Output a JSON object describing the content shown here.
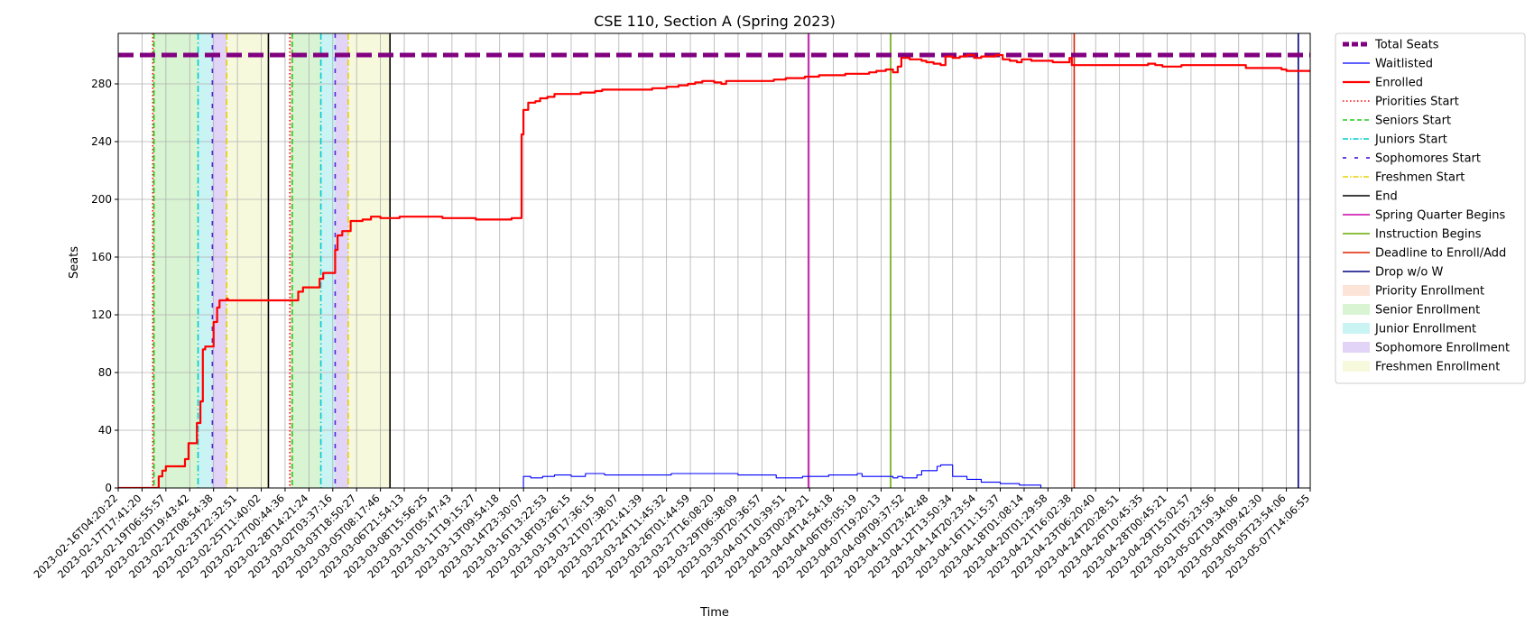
{
  "chart_data": {
    "type": "line",
    "title": "CSE 110, Section A (Spring 2023)",
    "xlabel": "Time",
    "ylabel": "Seats",
    "ylim": [
      0,
      315
    ],
    "yticks": [
      0,
      40,
      80,
      120,
      160,
      200,
      240,
      280
    ],
    "grid": true,
    "legend_placement": "outside-right",
    "x_tick_labels": [
      "2023-02-16T04:20:22",
      "2023-02-17T17:41:20",
      "2023-02-19T06:55:57",
      "2023-02-20T19:43:42",
      "2023-02-22T08:54:38",
      "2023-02-23T22:32:51",
      "2023-02-25T11:40:02",
      "2023-02-27T00:44:36",
      "2023-02-28T14:21:24",
      "2023-03-02T03:37:16",
      "2023-03-03T18:50:27",
      "2023-03-05T08:17:46",
      "2023-03-06T21:54:13",
      "2023-03-08T15:56:25",
      "2023-03-10T05:47:43",
      "2023-03-11T19:15:27",
      "2023-03-13T09:54:18",
      "2023-03-14T23:30:07",
      "2023-03-16T13:22:53",
      "2023-03-18T03:26:15",
      "2023-03-19T17:36:15",
      "2023-03-21T07:38:07",
      "2023-03-22T21:41:39",
      "2023-03-24T11:45:32",
      "2023-03-26T01:44:59",
      "2023-03-27T16:08:20",
      "2023-03-29T06:38:09",
      "2023-03-30T20:36:57",
      "2023-04-01T10:39:51",
      "2023-04-03T00:29:21",
      "2023-04-04T14:54:18",
      "2023-04-06T05:05:19",
      "2023-04-07T19:20:13",
      "2023-04-09T09:37:52",
      "2023-04-10T23:42:48",
      "2023-04-12T13:50:34",
      "2023-04-14T20:23:54",
      "2023-04-16T11:15:37",
      "2023-04-18T01:08:14",
      "2023-04-20T01:29:58",
      "2023-04-21T16:02:38",
      "2023-04-23T06:20:40",
      "2023-04-24T20:28:51",
      "2023-04-26T10:45:35",
      "2023-04-28T00:45:21",
      "2023-04-29T15:02:57",
      "2023-05-01T05:23:56",
      "2023-05-02T19:34:06",
      "2023-05-04T09:42:30",
      "2023-05-05T23:54:06",
      "2023-05-07T14:06:55"
    ],
    "x_range_index": [
      0,
      50
    ],
    "total_seats": 300,
    "series": [
      {
        "name": "Enrolled",
        "color": "#ff0000",
        "points": [
          [
            0,
            0
          ],
          [
            1.45,
            0
          ],
          [
            1.6,
            0
          ],
          [
            1.7,
            8
          ],
          [
            1.85,
            12
          ],
          [
            2.0,
            15
          ],
          [
            2.6,
            15
          ],
          [
            2.8,
            20
          ],
          [
            2.95,
            31
          ],
          [
            3.15,
            31
          ],
          [
            3.3,
            45
          ],
          [
            3.45,
            60
          ],
          [
            3.55,
            96
          ],
          [
            3.65,
            98
          ],
          [
            3.85,
            98
          ],
          [
            4.0,
            115
          ],
          [
            4.15,
            125
          ],
          [
            4.25,
            130
          ],
          [
            4.55,
            131
          ],
          [
            4.6,
            130
          ],
          [
            7.45,
            130
          ],
          [
            7.55,
            136
          ],
          [
            7.75,
            139
          ],
          [
            8.3,
            139
          ],
          [
            8.45,
            145
          ],
          [
            8.6,
            149
          ],
          [
            8.95,
            149
          ],
          [
            9.1,
            165
          ],
          [
            9.2,
            175
          ],
          [
            9.4,
            178
          ],
          [
            9.6,
            178
          ],
          [
            9.75,
            185
          ],
          [
            10.25,
            186
          ],
          [
            10.6,
            188
          ],
          [
            11.0,
            187
          ],
          [
            11.6,
            187
          ],
          [
            11.8,
            188
          ],
          [
            13.5,
            188
          ],
          [
            13.6,
            187
          ],
          [
            14.9,
            187
          ],
          [
            15.0,
            186
          ],
          [
            16.4,
            186
          ],
          [
            16.5,
            187
          ],
          [
            16.85,
            187
          ],
          [
            16.92,
            245
          ],
          [
            17.0,
            262
          ],
          [
            17.2,
            267
          ],
          [
            17.5,
            268
          ],
          [
            17.7,
            270
          ],
          [
            18.0,
            271
          ],
          [
            18.3,
            273
          ],
          [
            19.0,
            273
          ],
          [
            19.4,
            274
          ],
          [
            20.0,
            275
          ],
          [
            20.3,
            276
          ],
          [
            22.0,
            276
          ],
          [
            22.4,
            277
          ],
          [
            23.0,
            278
          ],
          [
            23.5,
            279
          ],
          [
            23.9,
            280
          ],
          [
            24.2,
            281
          ],
          [
            24.5,
            282
          ],
          [
            25.0,
            281
          ],
          [
            25.3,
            280
          ],
          [
            25.5,
            282
          ],
          [
            27.0,
            282
          ],
          [
            27.5,
            283
          ],
          [
            28.0,
            284
          ],
          [
            28.6,
            284
          ],
          [
            28.8,
            285
          ],
          [
            29.4,
            286
          ],
          [
            30.5,
            287
          ],
          [
            31.5,
            288
          ],
          [
            31.8,
            289
          ],
          [
            32.2,
            290
          ],
          [
            32.5,
            288
          ],
          [
            32.7,
            292
          ],
          [
            32.85,
            298
          ],
          [
            33.2,
            297
          ],
          [
            33.7,
            296
          ],
          [
            33.9,
            295
          ],
          [
            34.2,
            294
          ],
          [
            34.5,
            293
          ],
          [
            34.7,
            299
          ],
          [
            35.0,
            298
          ],
          [
            35.3,
            299
          ],
          [
            35.6,
            300
          ],
          [
            35.9,
            298
          ],
          [
            36.2,
            299
          ],
          [
            36.8,
            300
          ],
          [
            37.1,
            297
          ],
          [
            37.4,
            296
          ],
          [
            37.7,
            295
          ],
          [
            37.9,
            297
          ],
          [
            38.3,
            296
          ],
          [
            38.9,
            296
          ],
          [
            39.2,
            295
          ],
          [
            39.8,
            295
          ],
          [
            39.9,
            298
          ],
          [
            40.0,
            293
          ],
          [
            43.0,
            293
          ],
          [
            43.2,
            294
          ],
          [
            43.5,
            293
          ],
          [
            43.8,
            292
          ],
          [
            44.5,
            292
          ],
          [
            44.6,
            293
          ],
          [
            47.0,
            293
          ],
          [
            47.3,
            291
          ],
          [
            48.0,
            291
          ],
          [
            48.8,
            290
          ],
          [
            49.0,
            289
          ],
          [
            50,
            289
          ]
        ]
      },
      {
        "name": "Waitlisted",
        "color": "#0000ff",
        "points": [
          [
            0,
            0
          ],
          [
            16.9,
            0
          ],
          [
            17.0,
            8
          ],
          [
            17.2,
            8
          ],
          [
            17.3,
            7
          ],
          [
            17.6,
            7
          ],
          [
            17.8,
            8
          ],
          [
            18.1,
            8
          ],
          [
            18.3,
            9
          ],
          [
            18.9,
            9
          ],
          [
            19.0,
            8
          ],
          [
            19.5,
            8
          ],
          [
            19.6,
            10
          ],
          [
            20.2,
            10
          ],
          [
            20.4,
            9
          ],
          [
            23.0,
            9
          ],
          [
            23.2,
            10
          ],
          [
            25.8,
            10
          ],
          [
            26.0,
            9
          ],
          [
            27.4,
            9
          ],
          [
            27.6,
            7
          ],
          [
            28.5,
            7
          ],
          [
            28.7,
            8
          ],
          [
            29.6,
            8
          ],
          [
            29.8,
            9
          ],
          [
            30.9,
            9
          ],
          [
            31.0,
            10
          ],
          [
            31.2,
            8
          ],
          [
            32.4,
            8
          ],
          [
            32.5,
            7
          ],
          [
            32.7,
            8
          ],
          [
            32.9,
            7
          ],
          [
            33.3,
            7
          ],
          [
            33.5,
            9
          ],
          [
            33.7,
            12
          ],
          [
            34.2,
            12
          ],
          [
            34.35,
            15
          ],
          [
            34.5,
            16
          ],
          [
            34.9,
            16
          ],
          [
            35.0,
            8
          ],
          [
            35.5,
            8
          ],
          [
            35.6,
            6
          ],
          [
            36.0,
            6
          ],
          [
            36.2,
            4
          ],
          [
            36.8,
            4
          ],
          [
            37.0,
            3
          ],
          [
            37.6,
            3
          ],
          [
            37.8,
            2
          ],
          [
            38.6,
            2
          ],
          [
            38.7,
            0
          ],
          [
            50,
            0
          ]
        ]
      }
    ],
    "enrollment_periods": [
      {
        "name": "Priority Enrollment",
        "color": "#f4a582",
        "start": 1.45,
        "end": 1.5
      },
      {
        "name": "Senior Enrollment",
        "color": "#7fdc6a",
        "start": 1.5,
        "end": 3.35
      },
      {
        "name": "Junior Enrollment",
        "color": "#4fd6dc",
        "start": 3.35,
        "end": 3.95
      },
      {
        "name": "Sophomore Enrollment",
        "color": "#9b6fe0",
        "start": 3.95,
        "end": 4.55
      },
      {
        "name": "Freshmen Enrollment",
        "color": "#e6ec8a",
        "start": 4.55,
        "end": 6.3
      },
      {
        "name": "Priority Enrollment",
        "color": "#f4a582",
        "start": 7.2,
        "end": 7.3
      },
      {
        "name": "Senior Enrollment",
        "color": "#7fdc6a",
        "start": 7.3,
        "end": 8.5
      },
      {
        "name": "Junior Enrollment",
        "color": "#4fd6dc",
        "start": 8.5,
        "end": 9.1
      },
      {
        "name": "Sophomore Enrollment",
        "color": "#9b6fe0",
        "start": 9.1,
        "end": 9.65
      },
      {
        "name": "Freshmen Enrollment",
        "color": "#e6ec8a",
        "start": 9.65,
        "end": 11.4
      }
    ],
    "markers": [
      {
        "name": "Priorities Start",
        "color": "#ff0000",
        "dash": "1.5,2.5",
        "x": 1.45
      },
      {
        "name": "Seniors Start",
        "color": "#22cc22",
        "dash": "6,3",
        "x": 1.5
      },
      {
        "name": "Juniors Start",
        "color": "#00cccc",
        "dash": "7,3,1.5,3",
        "x": 3.35
      },
      {
        "name": "Sophomores Start",
        "color": "#5522dd",
        "dash": "5,8",
        "x": 3.95
      },
      {
        "name": "Freshmen Start",
        "color": "#e6d200",
        "dash": "7,3,1.5,3",
        "x": 4.55
      },
      {
        "name": "End",
        "color": "#000000",
        "dash": "",
        "x": 6.3
      },
      {
        "name": "Priorities Start",
        "color": "#ff0000",
        "dash": "1.5,2.5",
        "x": 7.2
      },
      {
        "name": "Seniors Start",
        "color": "#22cc22",
        "dash": "6,3",
        "x": 7.3
      },
      {
        "name": "Juniors Start",
        "color": "#00cccc",
        "dash": "7,3,1.5,3",
        "x": 8.5
      },
      {
        "name": "Sophomores Start",
        "color": "#5522dd",
        "dash": "5,8",
        "x": 9.1
      },
      {
        "name": "Freshmen Start",
        "color": "#e6d200",
        "dash": "7,3,1.5,3",
        "x": 9.65
      },
      {
        "name": "End",
        "color": "#000000",
        "dash": "",
        "x": 11.4
      },
      {
        "name": "Spring Quarter Begins",
        "color": "#cc00aa",
        "dash": "",
        "x": 28.95
      },
      {
        "name": "Instruction Begins",
        "color": "#66aa00",
        "dash": "",
        "x": 32.4
      },
      {
        "name": "Deadline to Enroll/Add",
        "color": "#dd2200",
        "dash": "",
        "x": 40.1
      },
      {
        "name": "Drop w/o W",
        "color": "#000080",
        "dash": "",
        "x": 49.5
      }
    ],
    "legend": [
      {
        "label": "Total Seats",
        "kind": "line",
        "color": "#800080",
        "dash": "7,3",
        "width": 5
      },
      {
        "label": "Waitlisted",
        "kind": "line",
        "color": "#0000ff",
        "dash": "",
        "width": 1.2
      },
      {
        "label": "Enrolled",
        "kind": "line",
        "color": "#ff0000",
        "dash": "",
        "width": 2.2
      },
      {
        "label": "Priorities Start",
        "kind": "line",
        "color": "#ff0000",
        "dash": "1.5,2.5",
        "width": 1.5
      },
      {
        "label": "Seniors Start",
        "kind": "line",
        "color": "#22cc22",
        "dash": "5,3",
        "width": 1.5
      },
      {
        "label": "Juniors Start",
        "kind": "line",
        "color": "#00cccc",
        "dash": "6,2,1.5,2",
        "width": 1.5
      },
      {
        "label": "Sophomores Start",
        "kind": "line",
        "color": "#5522dd",
        "dash": "4,9",
        "width": 1.8
      },
      {
        "label": "Freshmen Start",
        "kind": "line",
        "color": "#e6d200",
        "dash": "6,2,1.5,2",
        "width": 1.5
      },
      {
        "label": "End",
        "kind": "line",
        "color": "#000000",
        "dash": "",
        "width": 1.5
      },
      {
        "label": "Spring Quarter Begins",
        "kind": "line",
        "color": "#cc00aa",
        "dash": "",
        "width": 1.5
      },
      {
        "label": "Instruction Begins",
        "kind": "line",
        "color": "#66aa00",
        "dash": "",
        "width": 1.5
      },
      {
        "label": "Deadline to Enroll/Add",
        "kind": "line",
        "color": "#dd2200",
        "dash": "",
        "width": 1.5
      },
      {
        "label": "Drop w/o W",
        "kind": "line",
        "color": "#000080",
        "dash": "",
        "width": 1.5
      },
      {
        "label": "Priority Enrollment",
        "kind": "patch",
        "color": "#f4a582"
      },
      {
        "label": "Senior Enrollment",
        "kind": "patch",
        "color": "#7fdc6a"
      },
      {
        "label": "Junior Enrollment",
        "kind": "patch",
        "color": "#4fd6dc"
      },
      {
        "label": "Sophomore Enrollment",
        "kind": "patch",
        "color": "#9b6fe0"
      },
      {
        "label": "Freshmen Enrollment",
        "kind": "patch",
        "color": "#e6ec8a"
      }
    ]
  }
}
